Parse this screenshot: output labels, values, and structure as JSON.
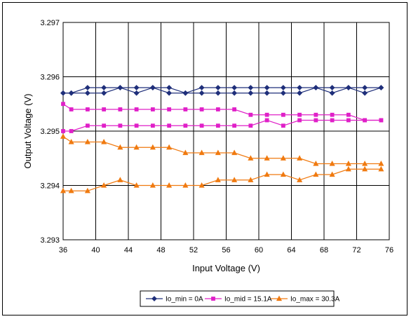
{
  "chart_data": {
    "type": "line",
    "title": "",
    "xlabel": "Input Voltage (V)",
    "ylabel": "Output Voltage  (V)",
    "xlim": [
      36,
      76
    ],
    "ylim": [
      3.293,
      3.297
    ],
    "xticks": [
      "36",
      "40",
      "44",
      "48",
      "52",
      "56",
      "60",
      "64",
      "68",
      "72",
      "76"
    ],
    "yticks": [
      "3.297",
      "3.296",
      "3.295",
      "3.294",
      "3.293"
    ],
    "grid": true,
    "legend": "bottom",
    "series": [
      {
        "name": "Io_min = 0A",
        "color": "#1f2f7a",
        "marker": "diamond",
        "x": [
          36,
          37,
          39,
          41,
          43,
          45,
          47,
          49,
          51,
          53,
          55,
          57,
          59,
          61,
          63,
          65,
          67,
          69,
          71,
          73,
          75
        ],
        "y": [
          3.2957,
          3.2957,
          3.2958,
          3.2958,
          3.2958,
          3.2958,
          3.2958,
          3.2958,
          3.2957,
          3.2958,
          3.2958,
          3.2958,
          3.2958,
          3.2958,
          3.2958,
          3.2958,
          3.2958,
          3.2958,
          3.2958,
          3.2958,
          3.2958
        ]
      },
      {
        "name": "",
        "color": "#1f2f7a",
        "marker": "diamond",
        "x": [
          36,
          37,
          39,
          41,
          43,
          45,
          47,
          49,
          51,
          53,
          55,
          57,
          59,
          61,
          63,
          65,
          67,
          69,
          71,
          73,
          75
        ],
        "y": [
          3.2957,
          3.2957,
          3.2957,
          3.2957,
          3.2958,
          3.2957,
          3.2958,
          3.2957,
          3.2957,
          3.2957,
          3.2957,
          3.2957,
          3.2957,
          3.2957,
          3.2957,
          3.2957,
          3.2958,
          3.2957,
          3.2958,
          3.2957,
          3.2958
        ]
      },
      {
        "name": "Io_mid = 15.1A",
        "color": "#e020c8",
        "marker": "square",
        "x": [
          36,
          37,
          39,
          41,
          43,
          45,
          47,
          49,
          51,
          53,
          55,
          57,
          59,
          61,
          63,
          65,
          67,
          69,
          71,
          73,
          75
        ],
        "y": [
          3.2955,
          3.2954,
          3.2954,
          3.2954,
          3.2954,
          3.2954,
          3.2954,
          3.2954,
          3.2954,
          3.2954,
          3.2954,
          3.2954,
          3.2953,
          3.2953,
          3.2953,
          3.2953,
          3.2953,
          3.2953,
          3.2953,
          3.2952,
          3.2952
        ]
      },
      {
        "name": "",
        "color": "#e020c8",
        "marker": "square",
        "x": [
          36,
          37,
          39,
          41,
          43,
          45,
          47,
          49,
          51,
          53,
          55,
          57,
          59,
          61,
          63,
          65,
          67,
          69,
          71,
          73,
          75
        ],
        "y": [
          3.295,
          3.295,
          3.2951,
          3.2951,
          3.2951,
          3.2951,
          3.2951,
          3.2951,
          3.2951,
          3.2951,
          3.2951,
          3.2951,
          3.2951,
          3.2952,
          3.2951,
          3.2952,
          3.2952,
          3.2952,
          3.2952,
          3.2952,
          3.2952
        ]
      },
      {
        "name": "Io_max = 30.3A",
        "color": "#f07a10",
        "marker": "triangle",
        "x": [
          36,
          37,
          39,
          41,
          43,
          45,
          47,
          49,
          51,
          53,
          55,
          57,
          59,
          61,
          63,
          65,
          67,
          69,
          71,
          73,
          75
        ],
        "y": [
          3.2949,
          3.2948,
          3.2948,
          3.2948,
          3.2947,
          3.2947,
          3.2947,
          3.2947,
          3.2946,
          3.2946,
          3.2946,
          3.2946,
          3.2945,
          3.2945,
          3.2945,
          3.2945,
          3.2944,
          3.2944,
          3.2944,
          3.2944,
          3.2944
        ]
      },
      {
        "name": "",
        "color": "#f07a10",
        "marker": "triangle",
        "x": [
          36,
          37,
          39,
          41,
          43,
          45,
          47,
          49,
          51,
          53,
          55,
          57,
          59,
          61,
          63,
          65,
          67,
          69,
          71,
          73,
          75
        ],
        "y": [
          3.2939,
          3.2939,
          3.2939,
          3.294,
          3.2941,
          3.294,
          3.294,
          3.294,
          3.294,
          3.294,
          3.2941,
          3.2941,
          3.2941,
          3.2942,
          3.2942,
          3.2941,
          3.2942,
          3.2942,
          3.2943,
          3.2943,
          3.2943
        ]
      }
    ]
  }
}
